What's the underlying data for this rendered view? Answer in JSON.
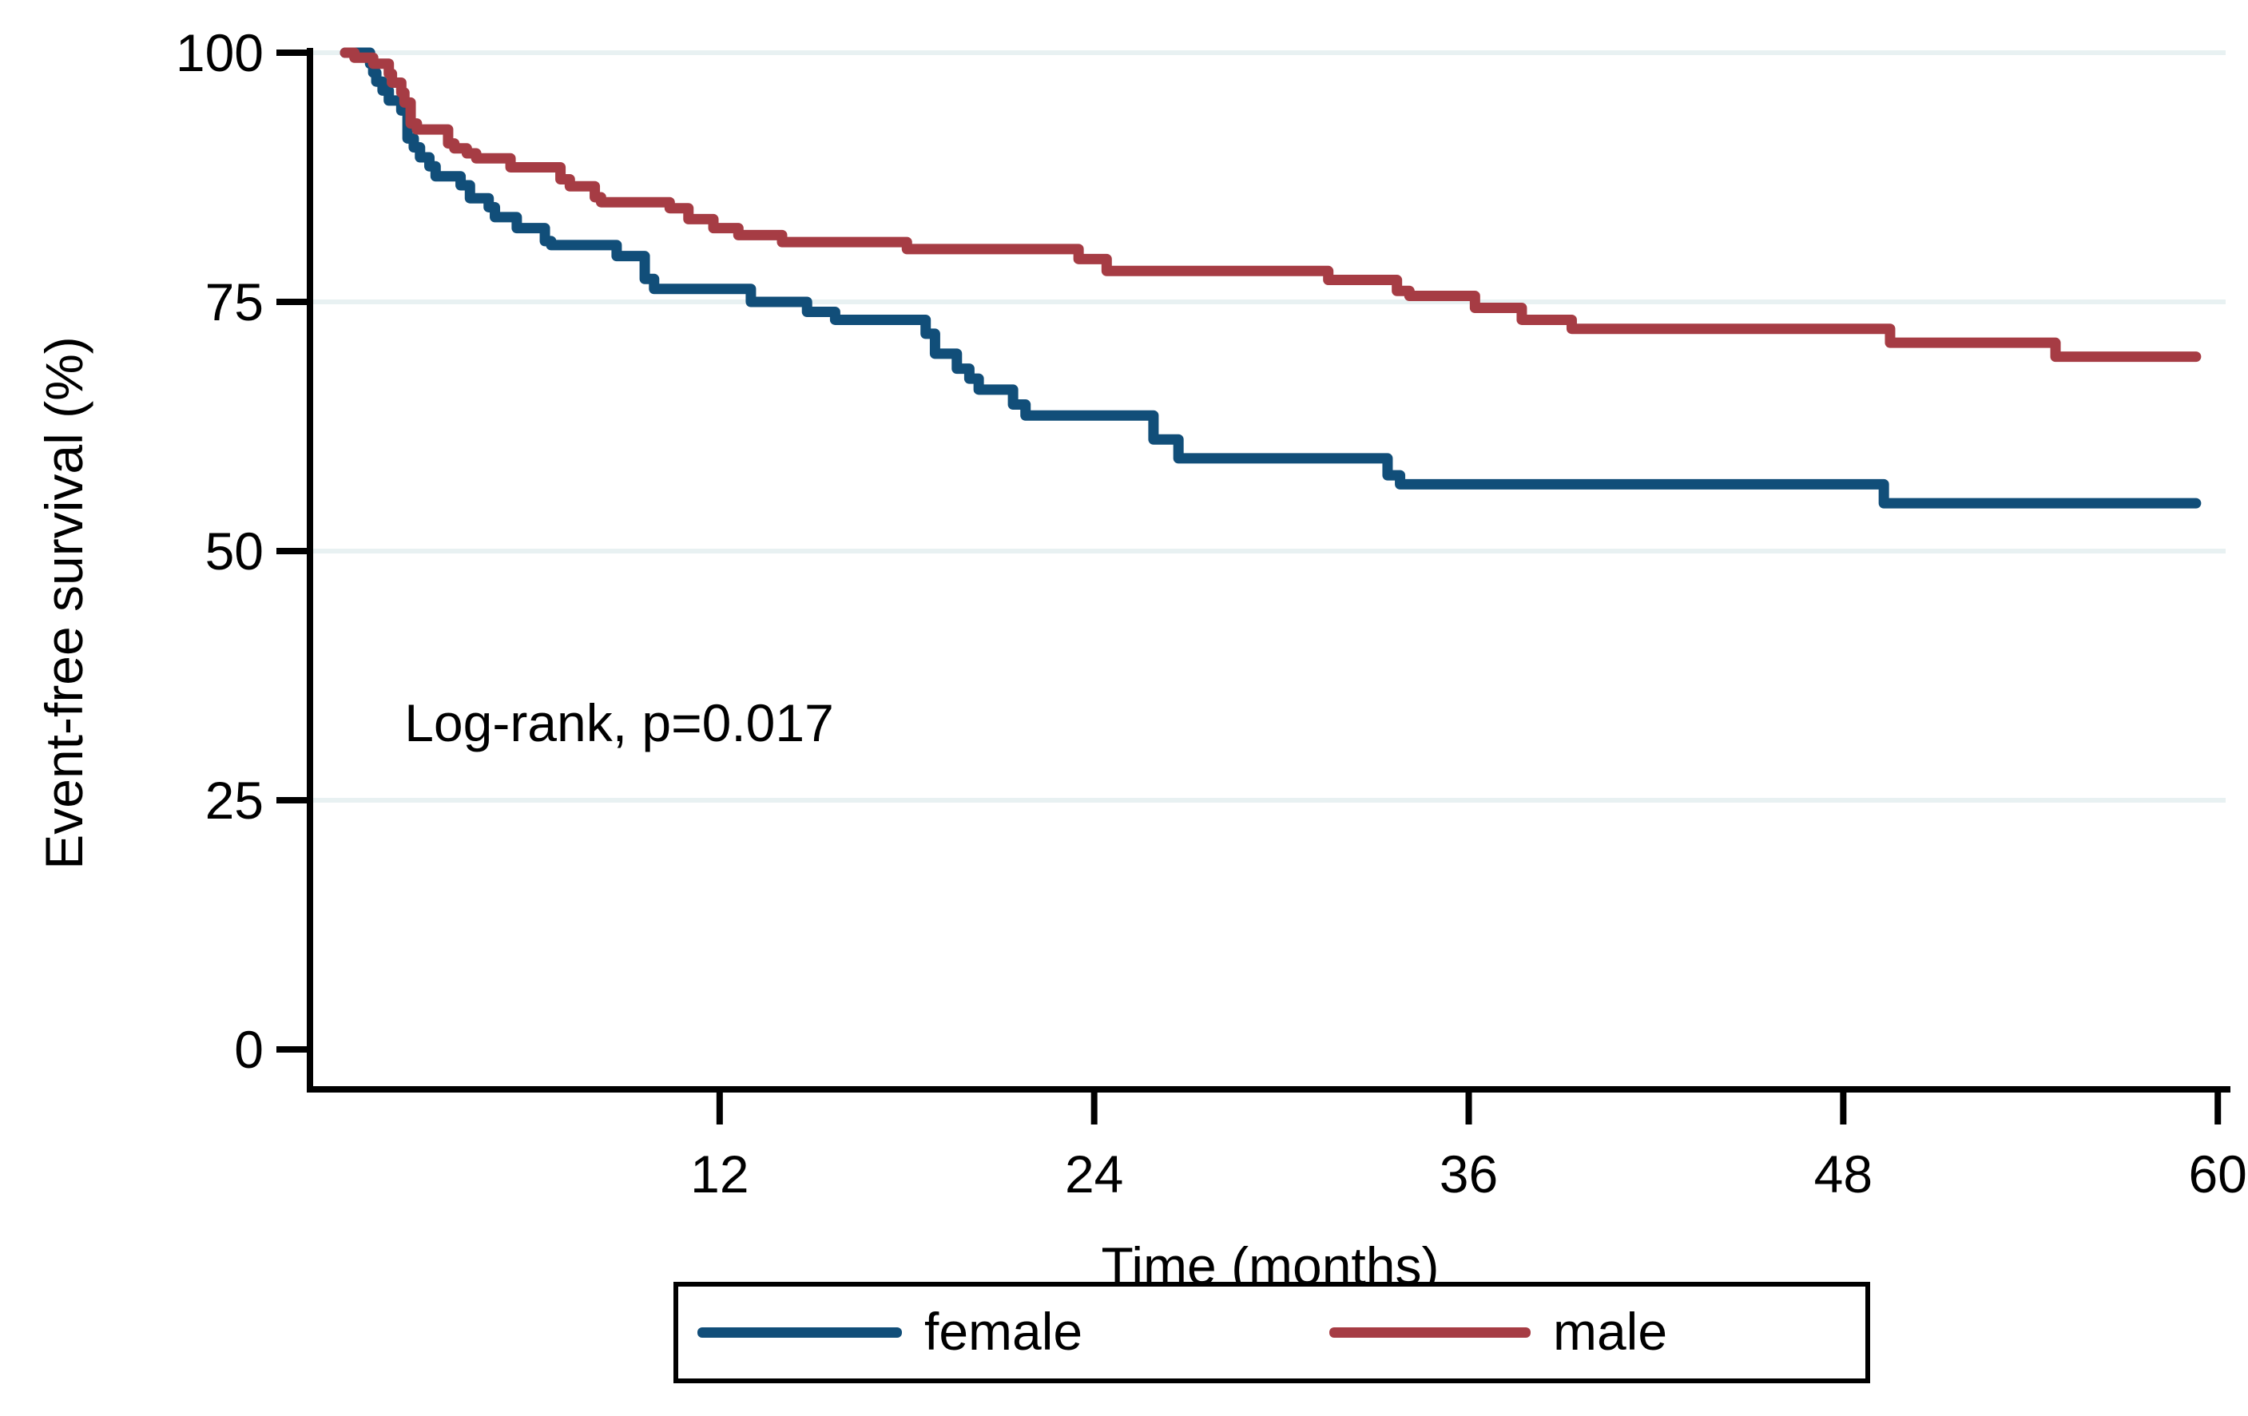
{
  "figure": {
    "background_color": "#ffffff",
    "axis_color": "#000000",
    "gridline_color": "#E8F1F2",
    "annotation_text": "Log-rank, p=0.017"
  },
  "chart_data": {
    "type": "line",
    "subtype": "kaplan-meier-step",
    "title": "",
    "xlabel": "Time (months)",
    "ylabel": "Event-free survival (%)",
    "xlim": [
      0,
      60
    ],
    "ylim": [
      0,
      100
    ],
    "x_ticks": [
      12,
      24,
      36,
      48,
      60
    ],
    "y_ticks": [
      100,
      75,
      50,
      25,
      0
    ],
    "gridlines_y": [
      100,
      75,
      50,
      25
    ],
    "grid": "horizontal-only",
    "legend_position": "bottom-center",
    "annotation": {
      "text": "Log-rank, p=0.017",
      "x": 1.9,
      "y": 32.8
    },
    "curve_end_time": 59.3,
    "series": [
      {
        "name": "female",
        "color": "#114E79",
        "steps": [
          [
            0,
            100
          ],
          [
            0.8,
            98.9
          ],
          [
            0.9,
            98.0
          ],
          [
            1.0,
            97.1
          ],
          [
            1.2,
            96.2
          ],
          [
            1.4,
            95.2
          ],
          [
            1.8,
            94.2
          ],
          [
            2.0,
            91.4
          ],
          [
            2.2,
            90.5
          ],
          [
            2.4,
            89.5
          ],
          [
            2.7,
            88.6
          ],
          [
            2.9,
            87.6
          ],
          [
            3.7,
            86.7
          ],
          [
            4.0,
            85.4
          ],
          [
            4.6,
            84.5
          ],
          [
            4.8,
            83.5
          ],
          [
            5.5,
            82.4
          ],
          [
            6.4,
            81.1
          ],
          [
            6.6,
            80.7
          ],
          [
            8.7,
            79.6
          ],
          [
            9.6,
            77.3
          ],
          [
            9.9,
            76.3
          ],
          [
            13.0,
            75.0
          ],
          [
            14.8,
            74.0
          ],
          [
            15.7,
            73.2
          ],
          [
            18.6,
            71.8
          ],
          [
            18.9,
            69.8
          ],
          [
            19.6,
            68.3
          ],
          [
            20.0,
            67.3
          ],
          [
            20.3,
            66.2
          ],
          [
            21.4,
            64.7
          ],
          [
            21.8,
            63.6
          ],
          [
            25.9,
            61.2
          ],
          [
            26.7,
            59.3
          ],
          [
            33.4,
            57.6
          ],
          [
            33.8,
            56.7
          ],
          [
            49.3,
            54.8
          ]
        ]
      },
      {
        "name": "male",
        "color": "#A63C44",
        "steps": [
          [
            0,
            100
          ],
          [
            0.3,
            99.5
          ],
          [
            0.9,
            98.9
          ],
          [
            1.4,
            97.9
          ],
          [
            1.5,
            97.0
          ],
          [
            1.8,
            96.0
          ],
          [
            1.9,
            95.0
          ],
          [
            2.1,
            92.9
          ],
          [
            2.3,
            92.3
          ],
          [
            3.3,
            90.9
          ],
          [
            3.5,
            90.4
          ],
          [
            3.9,
            89.9
          ],
          [
            4.2,
            89.4
          ],
          [
            5.3,
            88.5
          ],
          [
            6.9,
            87.3
          ],
          [
            7.2,
            86.6
          ],
          [
            8.0,
            85.5
          ],
          [
            8.2,
            85.0
          ],
          [
            10.4,
            84.4
          ],
          [
            11.0,
            83.3
          ],
          [
            11.8,
            82.4
          ],
          [
            12.6,
            81.7
          ],
          [
            14.0,
            81.0
          ],
          [
            18.0,
            80.3
          ],
          [
            23.5,
            79.3
          ],
          [
            24.4,
            78.1
          ],
          [
            31.5,
            77.2
          ],
          [
            33.7,
            76.1
          ],
          [
            34.1,
            75.6
          ],
          [
            36.2,
            74.4
          ],
          [
            37.7,
            73.2
          ],
          [
            39.3,
            72.3
          ],
          [
            49.5,
            70.9
          ],
          [
            54.8,
            69.5
          ]
        ]
      }
    ]
  }
}
